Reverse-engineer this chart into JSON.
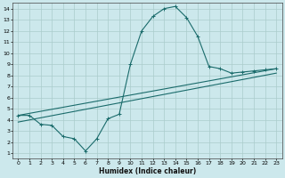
{
  "title": "",
  "xlabel": "Humidex (Indice chaleur)",
  "bg_color": "#cce8ec",
  "grid_color": "#aacccc",
  "line_color": "#1a6b6b",
  "xlim": [
    -0.5,
    23.5
  ],
  "ylim": [
    0.5,
    14.5
  ],
  "xticks": [
    0,
    1,
    2,
    3,
    4,
    5,
    6,
    7,
    8,
    9,
    10,
    11,
    12,
    13,
    14,
    15,
    16,
    17,
    18,
    19,
    20,
    21,
    22,
    23
  ],
  "yticks": [
    1,
    2,
    3,
    4,
    5,
    6,
    7,
    8,
    9,
    10,
    11,
    12,
    13,
    14
  ],
  "line1_x": [
    0,
    1,
    2,
    3,
    4,
    5,
    6,
    7,
    8,
    9,
    10,
    11,
    12,
    13,
    14,
    15,
    16,
    17,
    18,
    19,
    20,
    21,
    22,
    23
  ],
  "line1_y": [
    4.4,
    4.4,
    3.6,
    3.5,
    2.5,
    2.3,
    1.2,
    2.3,
    4.1,
    4.5,
    9.0,
    12.0,
    13.3,
    14.0,
    14.2,
    13.2,
    11.5,
    8.8,
    8.6,
    8.2,
    8.3,
    8.4,
    8.5,
    8.6
  ],
  "line2_x": [
    0,
    23
  ],
  "line2_y": [
    4.4,
    8.6
  ],
  "line3_x": [
    0,
    23
  ],
  "line3_y": [
    3.8,
    8.2
  ]
}
